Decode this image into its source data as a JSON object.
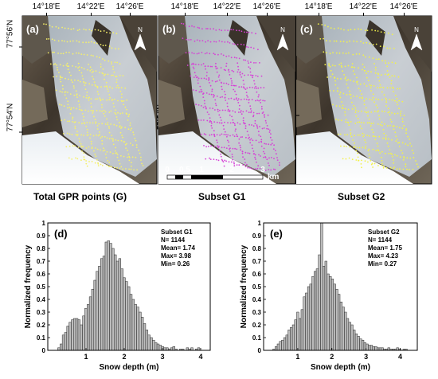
{
  "maps": {
    "top_lon_labels": [
      "14°18'E",
      "14°22'E",
      "14°26'E"
    ],
    "left_lat_labels": [
      "77°56'N",
      "77°54'N"
    ],
    "panels": [
      {
        "letter": "(a)",
        "title": "Total GPR points (G)",
        "point_color": "#f5f06a"
      },
      {
        "letter": "(b)",
        "title": "Subset G1",
        "point_color": "#d640d6"
      },
      {
        "letter": "(c)",
        "title": "Subset G2",
        "point_color": "#f2f24a"
      }
    ],
    "north_label": "N",
    "scalebar": {
      "ticks": [
        "0",
        "0.5",
        "1",
        "2",
        "3"
      ],
      "unit": "km"
    }
  },
  "chart_data": [
    {
      "type": "bar",
      "panel": "(d)",
      "stats": [
        "Subset G1",
        "N= 1144",
        "Mean= 1.74",
        "Max= 3.98",
        "Min= 0.26"
      ],
      "xlabel": "Snow depth (m)",
      "ylabel": "Normalized frequency",
      "xlim": [
        0,
        4.25
      ],
      "ylim": [
        0,
        1
      ],
      "xticks": [
        "1",
        "2",
        "3",
        "4"
      ],
      "yticks": [
        "0",
        "0.1",
        "0.2",
        "0.3",
        "0.4",
        "0.5",
        "0.6",
        "0.7",
        "0.8",
        "0.9",
        "1"
      ],
      "bin_start": 0.26,
      "bin_width": 0.059,
      "values": [
        0.02,
        0.05,
        0.12,
        0.14,
        0.19,
        0.22,
        0.24,
        0.25,
        0.25,
        0.24,
        0.2,
        0.27,
        0.33,
        0.36,
        0.42,
        0.48,
        0.55,
        0.62,
        0.66,
        0.72,
        0.74,
        0.85,
        0.86,
        0.84,
        0.8,
        0.75,
        0.7,
        0.72,
        0.64,
        0.57,
        0.54,
        0.5,
        0.44,
        0.4,
        0.36,
        0.34,
        0.3,
        0.26,
        0.21,
        0.16,
        0.12,
        0.1,
        0.08,
        0.06,
        0.05,
        0.04,
        0.03,
        0.02,
        0.02,
        0.01,
        0.02,
        0.03,
        0.01,
        0,
        0.01,
        0.01,
        0,
        0.02,
        0.01,
        0.02,
        0,
        0.01,
        0.02
      ]
    },
    {
      "type": "bar",
      "panel": "(e)",
      "stats": [
        "Subset G2",
        "N= 1144",
        "Mean= 1.75",
        "Max= 4.23",
        "Min= 0.27"
      ],
      "xlabel": "Snow depth (m)",
      "ylabel": "Normalized frequency",
      "xlim": [
        0,
        4.5
      ],
      "ylim": [
        0,
        1
      ],
      "xticks": [
        "1",
        "2",
        "3",
        "4"
      ],
      "yticks": [
        "0",
        "0.1",
        "0.2",
        "0.3",
        "0.4",
        "0.5",
        "0.6",
        "0.7",
        "0.8",
        "0.9",
        "1"
      ],
      "bin_start": 0.27,
      "bin_width": 0.0635,
      "values": [
        0.01,
        0.03,
        0.05,
        0.07,
        0.08,
        0.1,
        0.12,
        0.16,
        0.18,
        0.2,
        0.24,
        0.3,
        0.25,
        0.32,
        0.42,
        0.45,
        0.5,
        0.52,
        0.58,
        0.62,
        0.64,
        0.75,
        1.0,
        0.66,
        0.7,
        0.6,
        0.58,
        0.56,
        0.52,
        0.48,
        0.44,
        0.38,
        0.34,
        0.3,
        0.25,
        0.22,
        0.2,
        0.16,
        0.13,
        0.11,
        0.09,
        0.08,
        0.06,
        0.05,
        0.04,
        0.04,
        0.03,
        0.03,
        0.02,
        0.02,
        0.02,
        0.01,
        0.01,
        0.02,
        0.01,
        0.01,
        0.01,
        0.02,
        0.01,
        0,
        0.01,
        0.01
      ]
    }
  ]
}
